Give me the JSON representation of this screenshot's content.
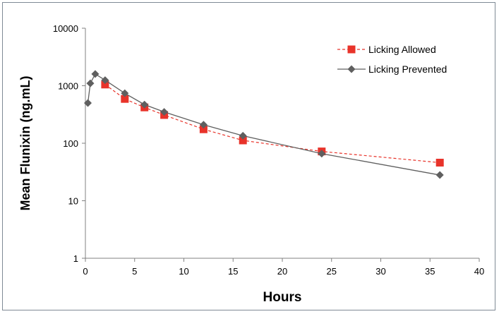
{
  "chart_data": {
    "type": "line",
    "title": "",
    "xlabel": "Hours",
    "ylabel": "Mean Flunixin (ng.mL)",
    "xlim": [
      0,
      40
    ],
    "ylim": [
      1,
      10000
    ],
    "y_scale": "log",
    "x_ticks": [
      "0",
      "5",
      "10",
      "15",
      "20",
      "25",
      "30",
      "35",
      "40"
    ],
    "y_ticks": [
      "1",
      "10",
      "100",
      "1000",
      "10000"
    ],
    "grid": false,
    "legend_position": "top-right",
    "series": [
      {
        "name": "Licking Allowed",
        "color": "#e8332a",
        "line_style": "dashed",
        "marker": "square",
        "x": [
          2,
          4,
          6,
          8,
          12,
          16,
          24,
          36
        ],
        "y": [
          1050,
          590,
          420,
          310,
          175,
          112,
          72,
          46
        ]
      },
      {
        "name": "Licking Prevented",
        "color": "#5f5f5f",
        "line_style": "solid",
        "marker": "diamond",
        "x": [
          0.25,
          0.5,
          1,
          2,
          4,
          6,
          8,
          12,
          16,
          24,
          36
        ],
        "y": [
          500,
          1100,
          1600,
          1250,
          740,
          470,
          350,
          210,
          135,
          66,
          28
        ]
      }
    ]
  }
}
